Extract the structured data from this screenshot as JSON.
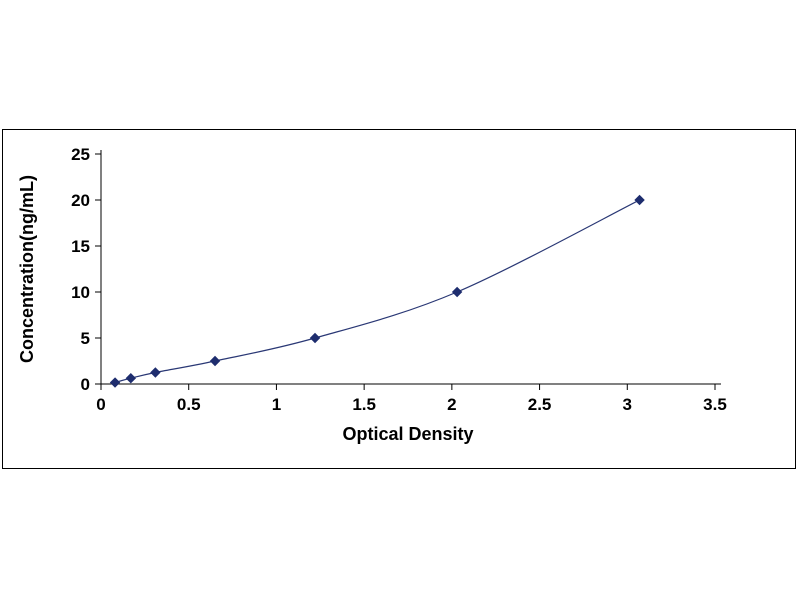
{
  "chart_data": {
    "type": "line",
    "title": "",
    "xlabel": "Optical Density",
    "ylabel": "Concentration(ng/mL)",
    "x": [
      0.08,
      0.17,
      0.31,
      0.65,
      1.22,
      2.03,
      3.07
    ],
    "y": [
      0.16,
      0.63,
      1.25,
      2.5,
      5.0,
      10.0,
      20.0
    ],
    "xlim": [
      0,
      3.5
    ],
    "ylim": [
      0,
      25
    ],
    "xticks": [
      0,
      0.5,
      1,
      1.5,
      2,
      2.5,
      3,
      3.5
    ],
    "yticks": [
      0,
      5,
      10,
      15,
      20,
      25
    ],
    "grid": false,
    "legend": "none",
    "marker": "diamond",
    "line_color": "#2a3875",
    "marker_color": "#1e2d6e",
    "axis_color": "#000000"
  }
}
